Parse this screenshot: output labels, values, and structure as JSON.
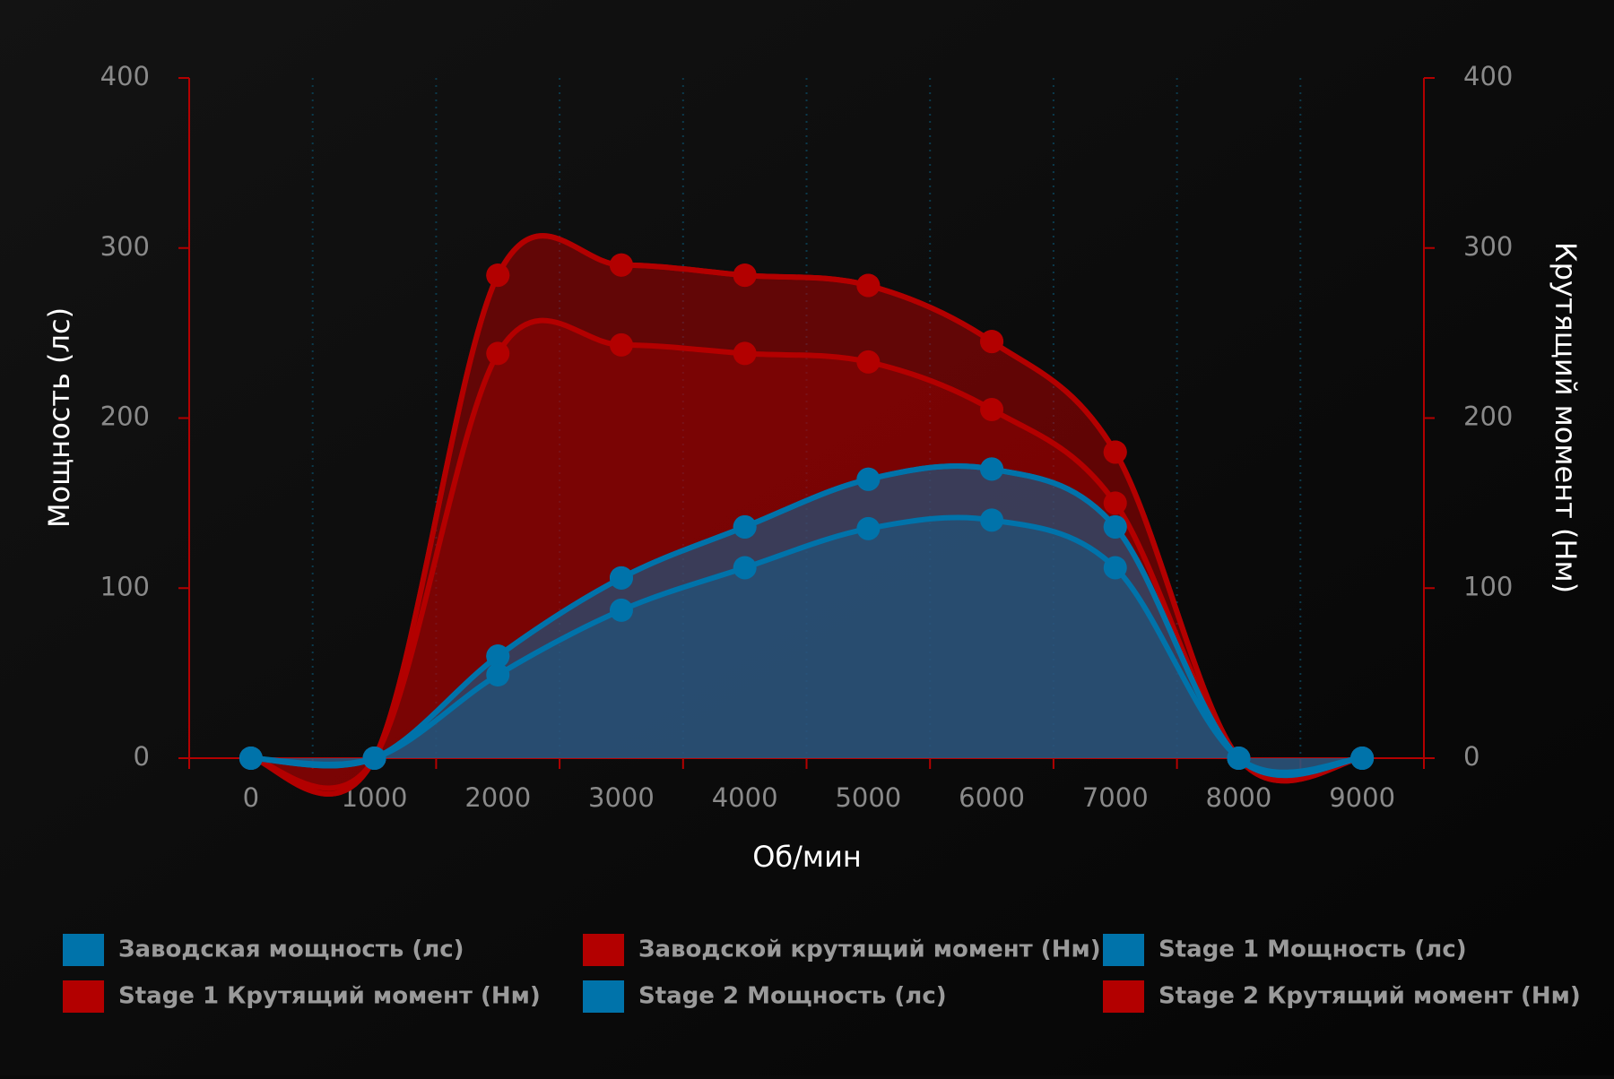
{
  "chart_data": {
    "type": "line",
    "x_label": "Об/мин",
    "y_label": "Мощность (лс)",
    "y2_label": "Крутящий момент (Нм)",
    "categories": [
      "0",
      "1000",
      "2000",
      "3000",
      "4000",
      "5000",
      "6000",
      "7000",
      "8000",
      "9000"
    ],
    "ylim": [
      0,
      400
    ],
    "yticks": [
      0,
      100,
      200,
      300,
      400
    ],
    "y2lim": [
      0,
      400
    ],
    "y2ticks": [
      0,
      100,
      200,
      300,
      400
    ],
    "grid": true,
    "fill": true,
    "series": [
      {
        "name": "Заводская мощность (лс)",
        "color": "#0073aa",
        "values": [
          0,
          0,
          49,
          87,
          112,
          135,
          140,
          112,
          0,
          0
        ]
      },
      {
        "name": "Заводской крутящий момент (Нм)",
        "color": "#b30000",
        "axis": "y2",
        "values": [
          0,
          0,
          238,
          243,
          238,
          233,
          205,
          150,
          0,
          0
        ]
      },
      {
        "name": "Stage 1 Мощность (лс)",
        "color": "#0073aa",
        "values": [
          0,
          0,
          60,
          106,
          136,
          164,
          170,
          136,
          0,
          0
        ]
      },
      {
        "name": "Stage 1 Крутящий момент (Нм)",
        "color": "#b30000",
        "axis": "y2",
        "values": [
          0,
          0,
          284,
          290,
          284,
          278,
          245,
          180,
          0,
          0
        ]
      },
      {
        "name": "Stage 2 Мощность (лс)",
        "color": "#0073aa",
        "values": [
          0,
          0,
          60,
          106,
          136,
          164,
          170,
          136,
          0,
          0
        ]
      },
      {
        "name": "Stage 2 Крутящий момент (Нм)",
        "color": "#b30000",
        "axis": "y2",
        "values": [
          0,
          0,
          284,
          290,
          284,
          278,
          245,
          180,
          0,
          0
        ]
      }
    ]
  }
}
